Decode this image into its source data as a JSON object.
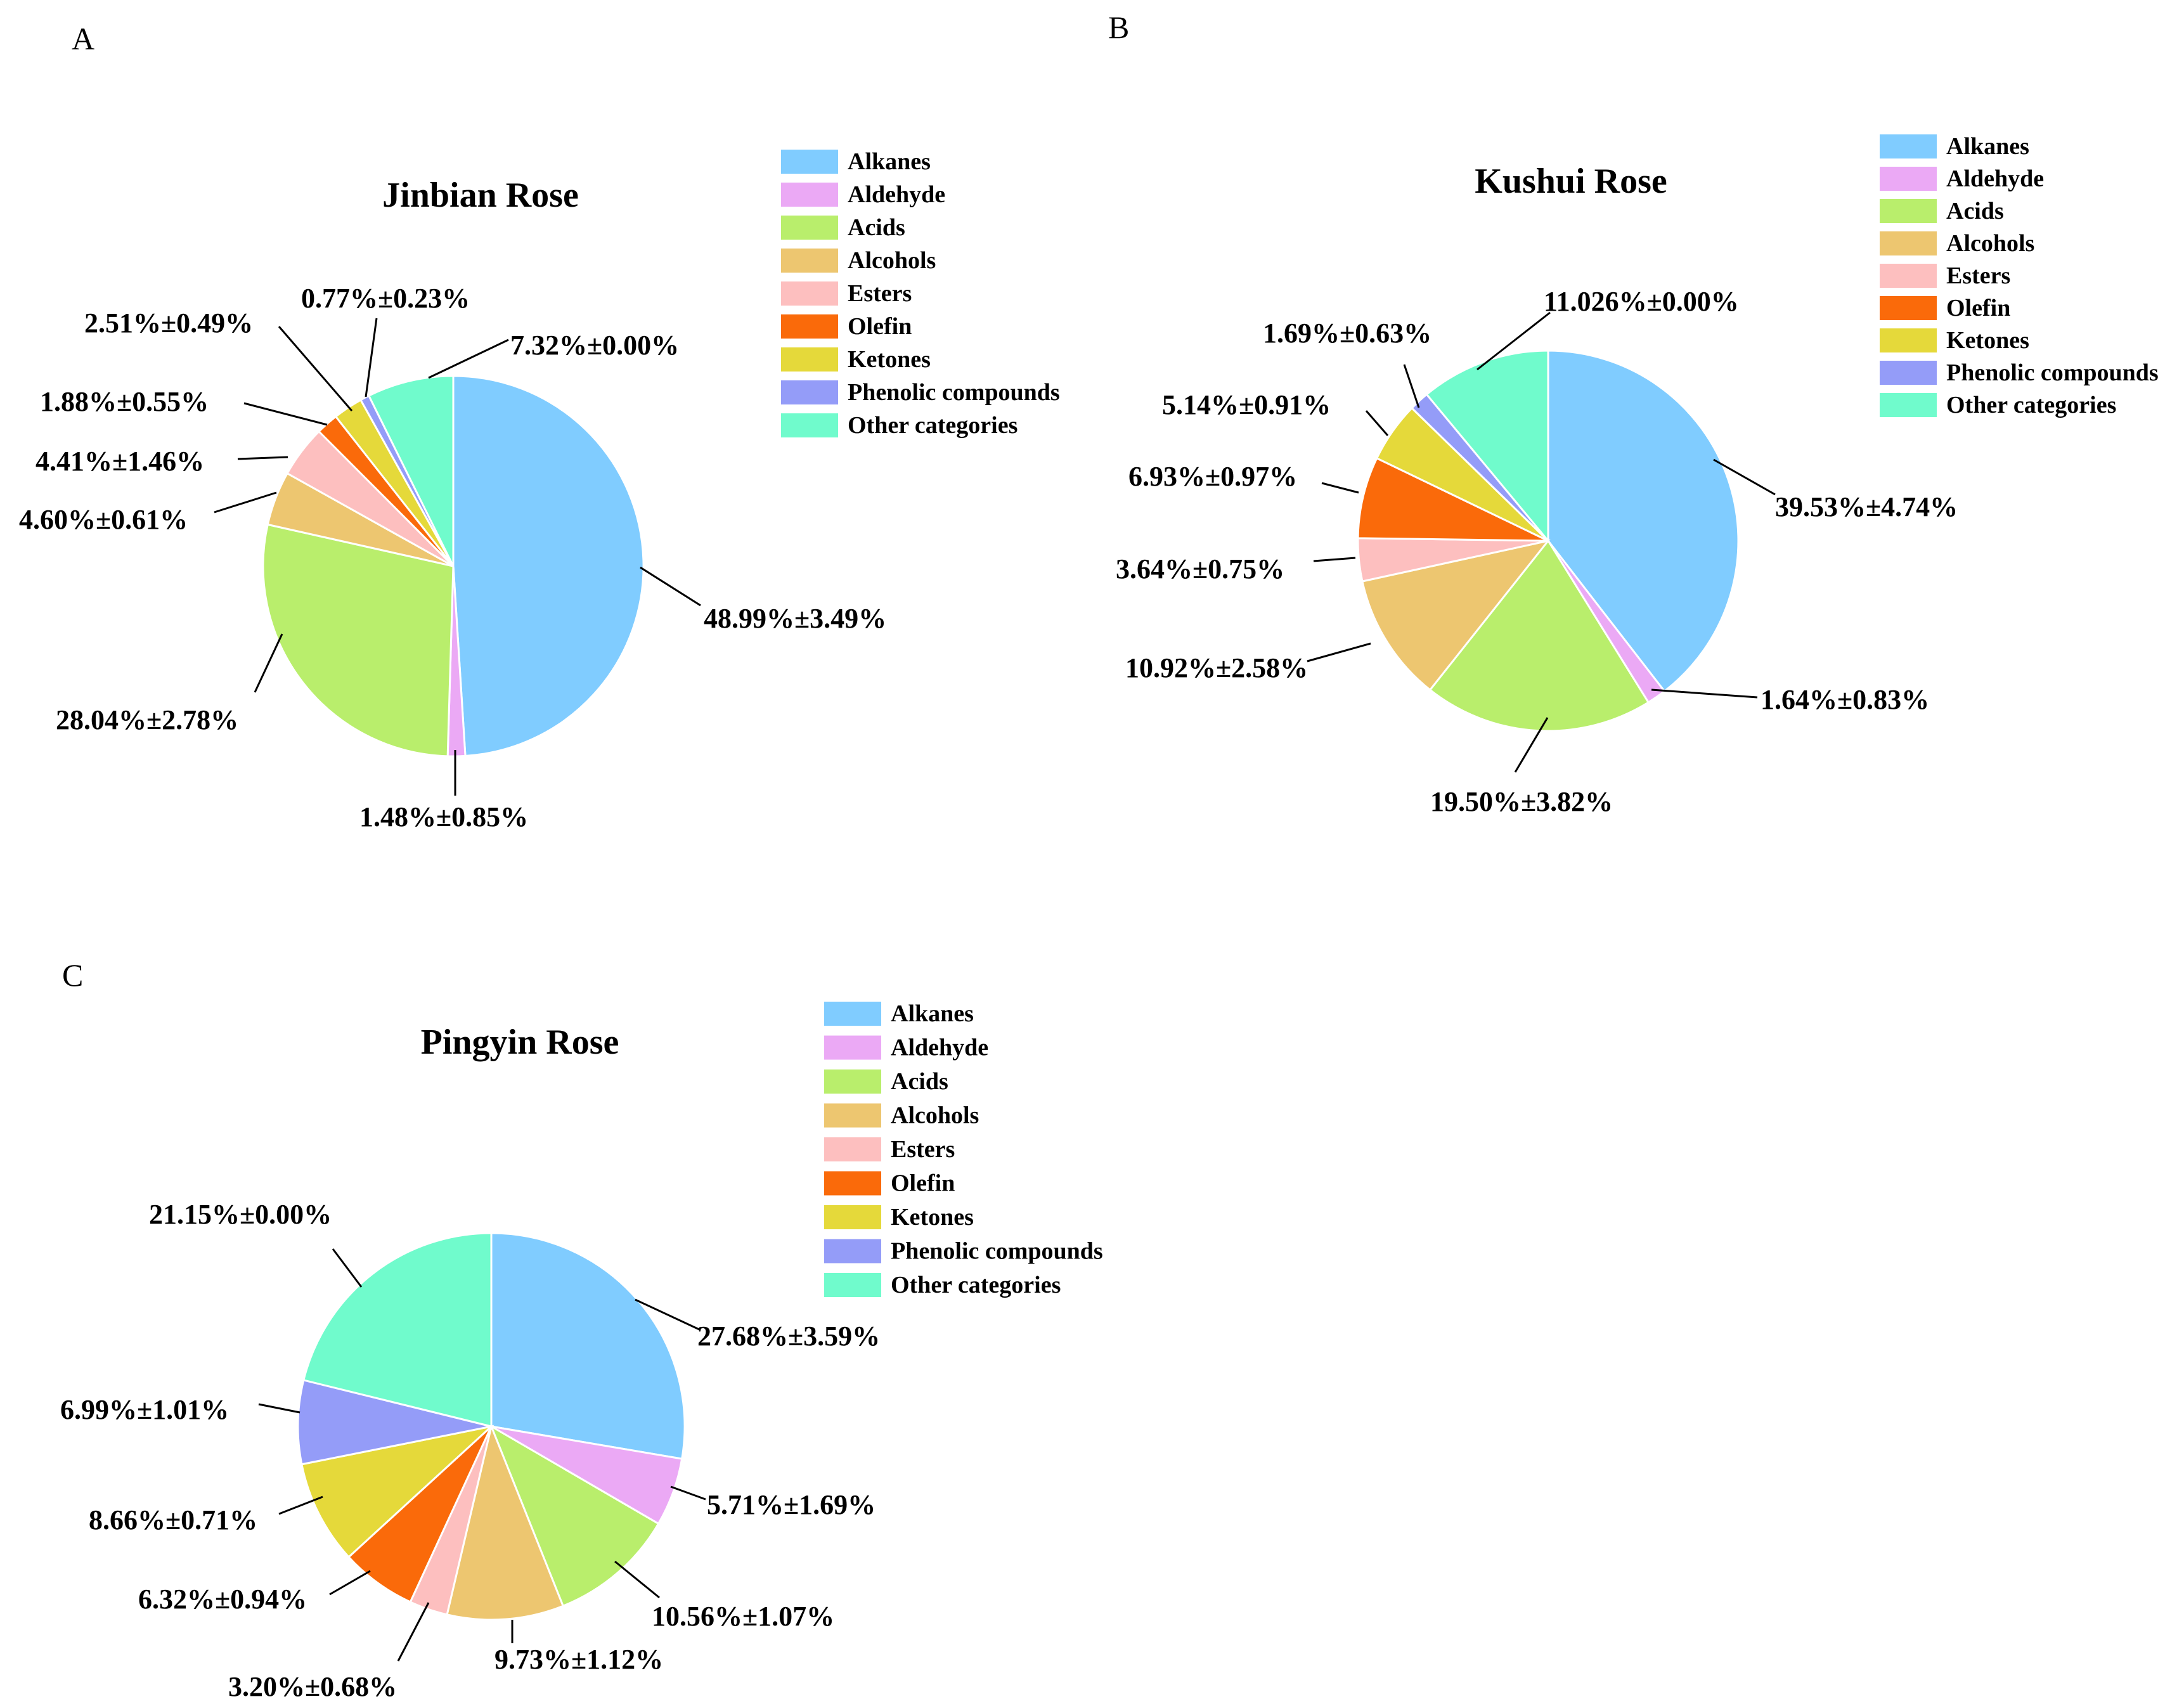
{
  "chart_data": [
    {
      "type": "pie",
      "panel": "A",
      "title": "Jinbian Rose",
      "categories": [
        "Alkanes",
        "Aldehyde",
        "Acids",
        "Alcohols",
        "Esters",
        "Olefin",
        "Ketones",
        "Phenolic compounds",
        "Other categories"
      ],
      "values": [
        48.99,
        1.48,
        28.04,
        4.6,
        4.41,
        1.88,
        2.51,
        0.77,
        7.32
      ],
      "labels": [
        "48.99%±3.49%",
        "1.48%±0.85%",
        "28.04%±2.78%",
        "4.60%±0.61%",
        "4.41%±1.46%",
        "1.88%±0.55%",
        "2.51%±0.49%",
        "0.77%±0.23%",
        "7.32%±0.00%"
      ],
      "colors": [
        "#80CCFF",
        "#EBA9F5",
        "#B9EE6C",
        "#EDC670",
        "#FDBFBF",
        "#FA6A0A",
        "#E5D93A",
        "#949CF8",
        "#70FBCC"
      ],
      "legend": "top-right"
    },
    {
      "type": "pie",
      "panel": "B",
      "title": "Kushui Rose",
      "categories": [
        "Alkanes",
        "Aldehyde",
        "Acids",
        "Alcohols",
        "Esters",
        "Olefin",
        "Ketones",
        "Phenolic compounds",
        "Other categories"
      ],
      "values": [
        39.53,
        1.64,
        19.5,
        10.92,
        3.64,
        6.93,
        5.14,
        1.69,
        11.026
      ],
      "labels": [
        "39.53%±4.74%",
        "1.64%±0.83%",
        "19.50%±3.82%",
        "10.92%±2.58%",
        "3.64%±0.75%",
        "6.93%±0.97%",
        "5.14%±0.91%",
        "1.69%±0.63%",
        "11.026%±0.00%"
      ],
      "colors": [
        "#80CCFF",
        "#EBA9F5",
        "#B9EE6C",
        "#EDC670",
        "#FDBFBF",
        "#FA6A0A",
        "#E5D93A",
        "#949CF8",
        "#70FBCC"
      ],
      "legend": "top-right"
    },
    {
      "type": "pie",
      "panel": "C",
      "title": "Pingyin Rose",
      "categories": [
        "Alkanes",
        "Aldehyde",
        "Acids",
        "Alcohols",
        "Esters",
        "Olefin",
        "Ketones",
        "Phenolic compounds",
        "Other categories"
      ],
      "values": [
        27.68,
        5.71,
        10.56,
        9.73,
        3.2,
        6.32,
        8.66,
        6.99,
        21.15
      ],
      "labels": [
        "27.68%±3.59%",
        "5.71%±1.69%",
        "10.56%±1.07%",
        "9.73%±1.12%",
        "3.20%±0.68%",
        "6.32%±0.94%",
        "8.66%±0.71%",
        "6.99%±1.01%",
        "21.15%±0.00%"
      ],
      "colors": [
        "#80CCFF",
        "#EBA9F5",
        "#B9EE6C",
        "#EDC670",
        "#FDBFBF",
        "#FA6A0A",
        "#E5D93A",
        "#949CF8",
        "#70FBCC"
      ],
      "legend": "top-right"
    }
  ]
}
